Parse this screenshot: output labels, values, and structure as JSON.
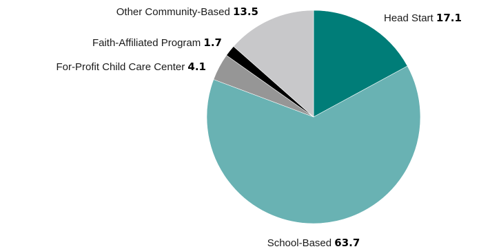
{
  "chart_data": {
    "type": "pie",
    "title": "",
    "start": "top (12 o'clock), clockwise",
    "slices": [
      {
        "label": "Head Start",
        "value": 17.1,
        "display": "17.1",
        "color": "#007d78"
      },
      {
        "label": "School-Based",
        "value": 63.7,
        "display": "63.7",
        "color": "#69b2b3"
      },
      {
        "label": "For-Profit Child Care Center",
        "value": 4.1,
        "display": "4.1",
        "color": "#969696"
      },
      {
        "label": "Faith-Affiliated Program",
        "value": 1.7,
        "display": "1.7",
        "color": "#000000"
      },
      {
        "label": "Other Community-Based",
        "value": 13.5,
        "display": "13.5",
        "color": "#c8c8ca"
      }
    ]
  }
}
